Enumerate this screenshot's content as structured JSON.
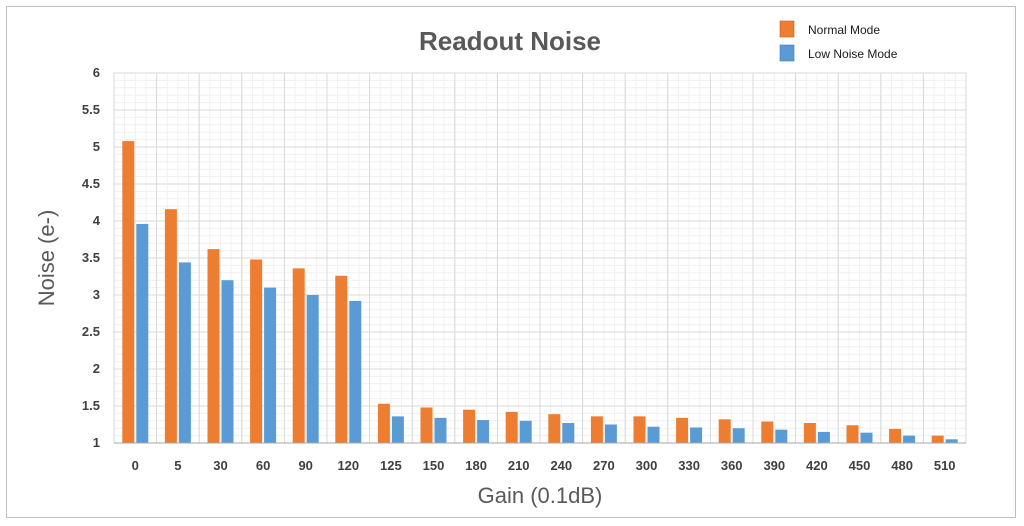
{
  "chart_data": {
    "type": "bar",
    "title": "Readout Noise",
    "xlabel": "Gain (0.1dB)",
    "ylabel": "Noise (e-)",
    "ylim": [
      1,
      6
    ],
    "yticks": [
      "1",
      "1.5",
      "2",
      "2.5",
      "3",
      "3.5",
      "4",
      "4.5",
      "5",
      "5.5",
      "6"
    ],
    "grid": true,
    "legend_position": "top-right",
    "categories": [
      "0",
      "5",
      "30",
      "60",
      "90",
      "120",
      "125",
      "150",
      "180",
      "210",
      "240",
      "270",
      "300",
      "330",
      "360",
      "390",
      "420",
      "450",
      "480",
      "510"
    ],
    "series": [
      {
        "name": "Normal Mode",
        "color": "#ED7D31",
        "values": [
          5.08,
          4.16,
          3.62,
          3.48,
          3.36,
          3.26,
          1.53,
          1.48,
          1.45,
          1.42,
          1.39,
          1.36,
          1.36,
          1.34,
          1.32,
          1.29,
          1.27,
          1.24,
          1.19,
          1.1
        ]
      },
      {
        "name": "Low Noise Mode",
        "color": "#5B9BD5",
        "values": [
          3.96,
          3.44,
          3.2,
          3.1,
          3.0,
          2.92,
          1.36,
          1.34,
          1.31,
          1.3,
          1.27,
          1.25,
          1.22,
          1.21,
          1.2,
          1.18,
          1.15,
          1.14,
          1.1,
          1.05
        ]
      }
    ]
  }
}
